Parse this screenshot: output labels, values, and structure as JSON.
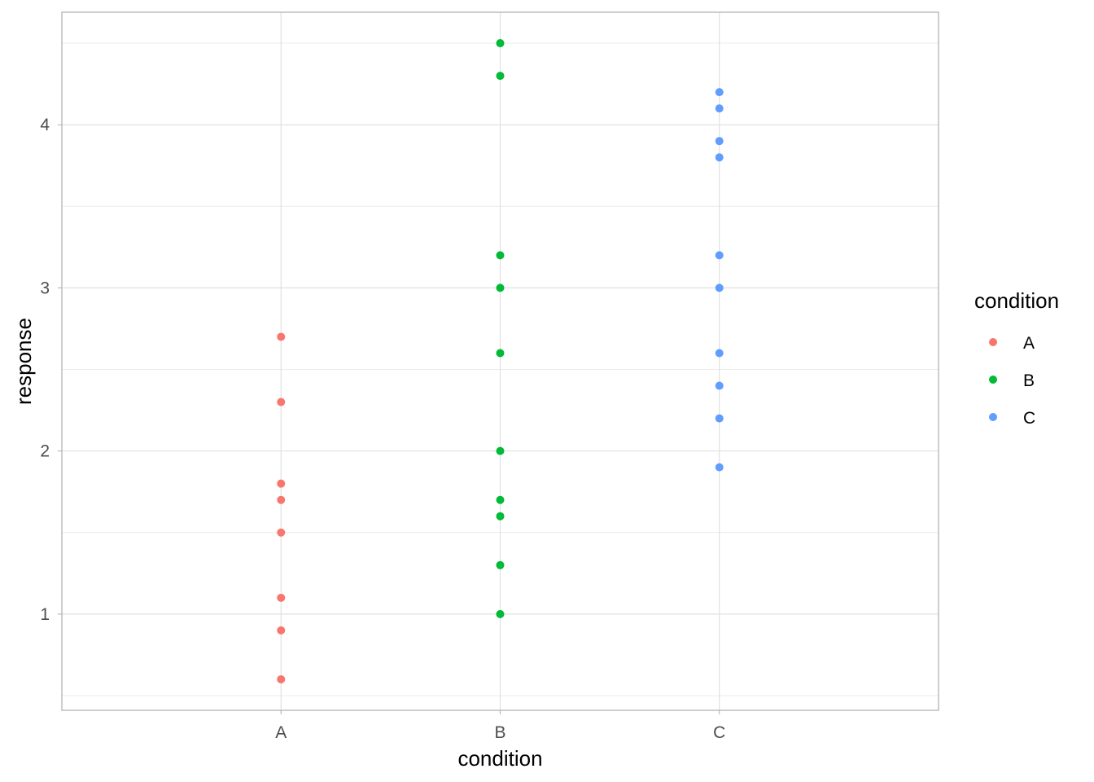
{
  "chart_data": {
    "type": "scatter",
    "title": "",
    "xlabel": "condition",
    "ylabel": "response",
    "categories": [
      "A",
      "B",
      "C"
    ],
    "y_ticks": [
      1,
      2,
      3,
      4
    ],
    "ylim": [
      0.41,
      4.69
    ],
    "grid": true,
    "legend": {
      "title": "condition",
      "position": "right",
      "entries": [
        "A",
        "B",
        "C"
      ]
    },
    "series": [
      {
        "name": "A",
        "color": "#F8766D",
        "x": "A",
        "values": [
          2.7,
          2.3,
          1.8,
          1.7,
          1.5,
          1.1,
          0.9,
          0.6
        ]
      },
      {
        "name": "B",
        "color": "#00BA38",
        "x": "B",
        "values": [
          4.5,
          4.3,
          3.2,
          3.0,
          2.6,
          2.0,
          1.7,
          1.6,
          1.3,
          1.0
        ]
      },
      {
        "name": "C",
        "color": "#619CFF",
        "x": "C",
        "values": [
          4.2,
          4.1,
          3.9,
          3.8,
          3.2,
          3.0,
          2.6,
          2.4,
          2.2,
          1.9
        ]
      }
    ]
  }
}
